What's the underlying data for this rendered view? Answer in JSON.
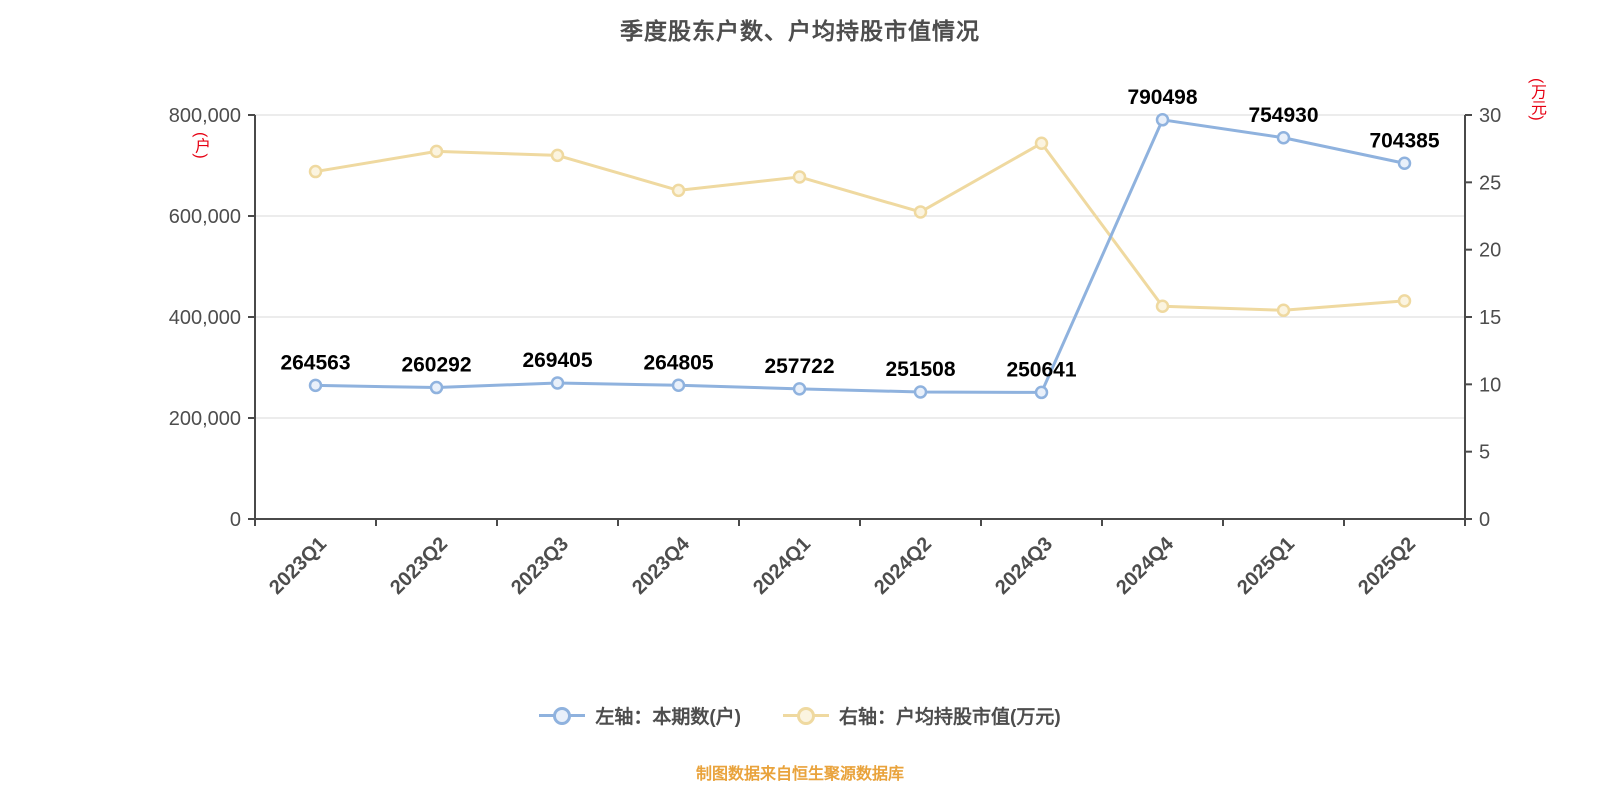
{
  "title": "季度股东户数、户均持股市值情况",
  "source_note": "制图数据来自恒生聚源数据库",
  "colors": {
    "title": "#4d4d4d",
    "axis_text": "#4d4d4d",
    "axis_line": "#4a4a4a",
    "grid_line": "#d9d9d9",
    "unit_text": "#e60012",
    "data_label": "#000000",
    "source_note": "#e9a33c",
    "legend_text": "#4d4d4d"
  },
  "left_axis": {
    "unit": "(户)",
    "min": 0,
    "max": 800000,
    "tick_step": 200000,
    "tick_labels": [
      "0",
      "200,000",
      "400,000",
      "600,000",
      "800,000"
    ]
  },
  "right_axis": {
    "unit": "(万元)",
    "min": 0,
    "max": 30,
    "tick_step": 5,
    "tick_labels": [
      "0",
      "5",
      "10",
      "15",
      "20",
      "25",
      "30"
    ]
  },
  "legend": {
    "items": [
      {
        "label": "左轴：本期数(户)",
        "color": "#8fb2de",
        "marker_fill": "#e9f0fa"
      },
      {
        "label": "右轴：户均持股市值(万元)",
        "color": "#efd9a0",
        "marker_fill": "#fbf4e0"
      }
    ]
  },
  "chart_data": {
    "type": "line",
    "title": "季度股东户数、户均持股市值情况",
    "grid": true,
    "legend_position": "bottom",
    "categories": [
      "2023Q1",
      "2023Q2",
      "2023Q3",
      "2023Q4",
      "2024Q1",
      "2024Q2",
      "2024Q3",
      "2024Q4",
      "2025Q1",
      "2025Q2"
    ],
    "series": [
      {
        "name": "左轴：本期数(户)",
        "axis": "left",
        "color": "#8fb2de",
        "marker_fill": "#e9f0fa",
        "show_labels": true,
        "values": [
          264563,
          260292,
          269405,
          264805,
          257722,
          251508,
          250641,
          790498,
          754930,
          704385
        ]
      },
      {
        "name": "右轴：户均持股市值(万元)",
        "axis": "right",
        "color": "#efd9a0",
        "marker_fill": "#fbf4e0",
        "show_labels": false,
        "values": [
          25.8,
          27.3,
          27.0,
          24.4,
          25.4,
          22.8,
          27.9,
          15.8,
          15.5,
          16.2
        ]
      }
    ],
    "left_ylim": [
      0,
      800000
    ],
    "right_ylim": [
      0,
      30
    ]
  }
}
